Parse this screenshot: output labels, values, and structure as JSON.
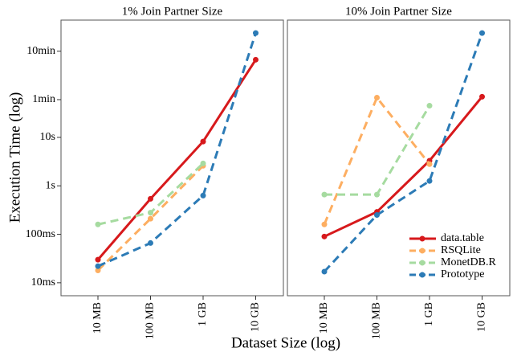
{
  "chart_data": [
    {
      "type": "line",
      "title": "1% Join Partner Size",
      "x_label": "Dataset Size (log)",
      "y_label": "Execution Time (log)",
      "categories": [
        "10 MB",
        "100 MB",
        "1 GB",
        "10 GB"
      ],
      "log_scale": true,
      "ylim": [
        0.0054,
        2630
      ],
      "yticks": [
        {
          "value": 0.01,
          "label": "10ms"
        },
        {
          "value": 0.1,
          "label": "100ms"
        },
        {
          "value": 1,
          "label": "1s"
        },
        {
          "value": 10,
          "label": "10s"
        },
        {
          "value": 60,
          "label": "1min"
        },
        {
          "value": 600,
          "label": "10min"
        }
      ],
      "series": [
        {
          "color": "#d7191c",
          "dashed": false,
          "values": [
            0.03,
            0.54,
            8.2,
            400
          ]
        },
        {
          "color": "#fdae61",
          "dashed": true,
          "values": [
            0.018,
            0.21,
            2.6,
            null
          ]
        },
        {
          "color": "#a6dba0",
          "dashed": true,
          "values": [
            0.16,
            0.28,
            2.9,
            null
          ]
        },
        {
          "color": "#2c7bb6",
          "dashed": true,
          "values": [
            0.022,
            0.066,
            0.63,
            1420
          ]
        }
      ]
    },
    {
      "type": "line",
      "title": "10% Join Partner Size",
      "categories": [
        "10 MB",
        "100 MB",
        "1 GB",
        "10 GB"
      ],
      "log_scale": true,
      "ylim": [
        0.0054,
        2630
      ],
      "legend": "lower right",
      "series": [
        {
          "name": "data.table",
          "color": "#d7191c",
          "dashed": false,
          "values": [
            0.09,
            0.29,
            3.3,
            69
          ]
        },
        {
          "name": "RSQLite",
          "color": "#fdae61",
          "dashed": true,
          "values": [
            0.16,
            66,
            2.8,
            null
          ]
        },
        {
          "name": "MonetDB.R",
          "color": "#a6dba0",
          "dashed": true,
          "values": [
            0.66,
            0.66,
            45,
            null
          ]
        },
        {
          "name": "Prototype",
          "color": "#2c7bb6",
          "dashed": true,
          "values": [
            0.017,
            0.25,
            1.26,
            1420
          ]
        }
      ]
    }
  ]
}
